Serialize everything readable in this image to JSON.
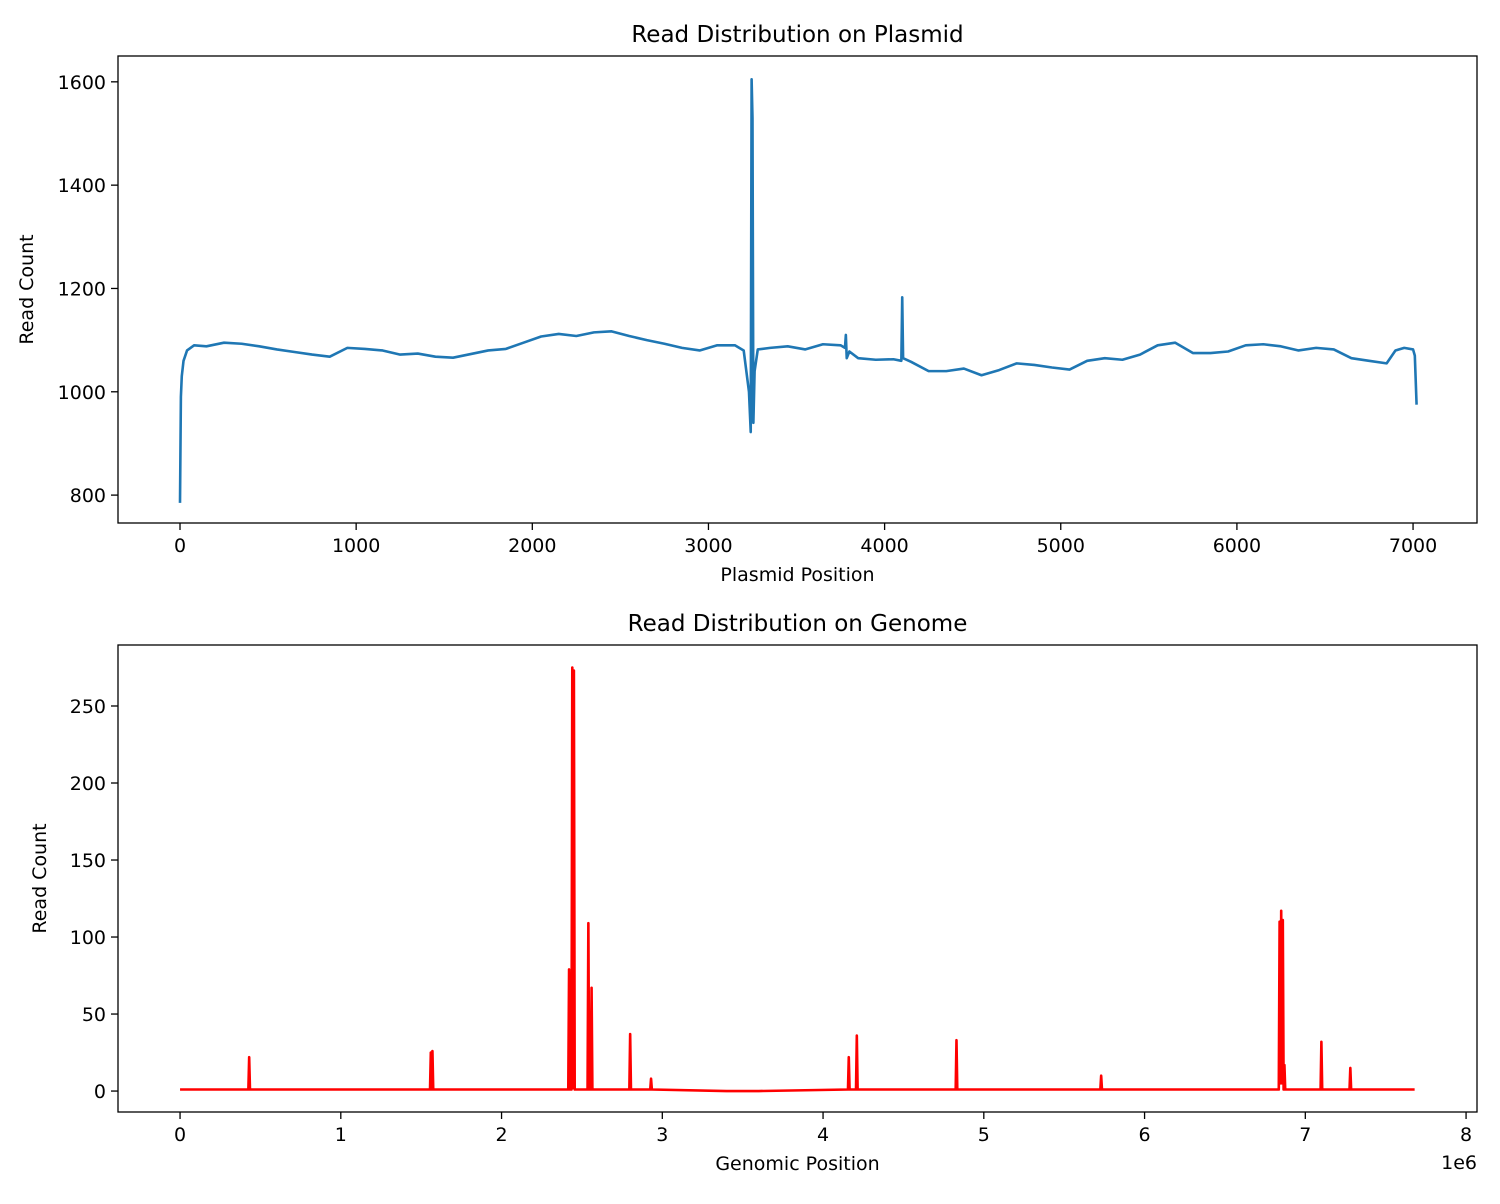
{
  "chart_data": [
    {
      "type": "line",
      "title": "Read Distribution on Plasmid",
      "xlabel": "Plasmid Position",
      "ylabel": "Read Count",
      "color": "#1f77b4",
      "x": [
        0,
        5,
        10,
        20,
        40,
        80,
        150,
        250,
        350,
        450,
        550,
        650,
        750,
        850,
        950,
        1050,
        1150,
        1250,
        1350,
        1450,
        1550,
        1650,
        1750,
        1850,
        1950,
        2050,
        2150,
        2250,
        2350,
        2450,
        2550,
        2650,
        2750,
        2850,
        2950,
        3050,
        3150,
        3200,
        3230,
        3240,
        3245,
        3250,
        3255,
        3262,
        3280,
        3350,
        3450,
        3550,
        3650,
        3750,
        3775,
        3780,
        3785,
        3800,
        3850,
        3950,
        4050,
        4095,
        4100,
        4105,
        4150,
        4250,
        4350,
        4450,
        4550,
        4650,
        4750,
        4850,
        4950,
        5050,
        5150,
        5250,
        5350,
        5450,
        5550,
        5650,
        5750,
        5850,
        5950,
        6050,
        6150,
        6250,
        6350,
        6450,
        6550,
        6650,
        6750,
        6850,
        6900,
        6950,
        7000,
        7010,
        7020
      ],
      "values": [
        785,
        990,
        1030,
        1060,
        1080,
        1090,
        1088,
        1095,
        1093,
        1088,
        1082,
        1077,
        1072,
        1068,
        1085,
        1083,
        1080,
        1072,
        1074,
        1068,
        1066,
        1073,
        1080,
        1083,
        1095,
        1107,
        1112,
        1108,
        1115,
        1117,
        1108,
        1100,
        1093,
        1085,
        1080,
        1090,
        1090,
        1080,
        1000,
        922,
        1605,
        1530,
        940,
        1040,
        1082,
        1085,
        1088,
        1082,
        1092,
        1090,
        1085,
        1110,
        1065,
        1078,
        1065,
        1062,
        1063,
        1060,
        1183,
        1065,
        1058,
        1040,
        1040,
        1045,
        1032,
        1042,
        1055,
        1052,
        1047,
        1043,
        1060,
        1065,
        1062,
        1072,
        1090,
        1095,
        1075,
        1075,
        1078,
        1090,
        1092,
        1088,
        1080,
        1085,
        1082,
        1065,
        1060,
        1055,
        1080,
        1085,
        1082,
        1070,
        975
      ],
      "xlim": [
        -352,
        7363
      ],
      "ylim": [
        746,
        1650
      ],
      "xticks": [
        0,
        1000,
        2000,
        3000,
        4000,
        5000,
        6000,
        7000
      ],
      "yticks": [
        800,
        1000,
        1200,
        1400,
        1600
      ]
    },
    {
      "type": "line",
      "title": "Read Distribution on Genome",
      "xlabel": "Genomic Position",
      "ylabel": "Read Count",
      "x_offset_label": "1e6",
      "color": "#ff0000",
      "x": [
        0,
        0.425,
        0.43,
        0.435,
        1.555,
        1.56,
        1.565,
        1.57,
        1.575,
        2.415,
        2.42,
        2.425,
        2.435,
        2.44,
        2.445,
        2.45,
        2.455,
        2.535,
        2.54,
        2.545,
        2.555,
        2.56,
        2.565,
        2.795,
        2.8,
        2.805,
        2.925,
        2.93,
        2.935,
        3.4,
        3.6,
        4.155,
        4.16,
        4.165,
        4.205,
        4.21,
        4.215,
        4.825,
        4.83,
        4.835,
        5.725,
        5.73,
        5.735,
        6.835,
        6.84,
        6.845,
        6.85,
        6.855,
        6.86,
        6.865,
        6.87,
        6.875,
        7.095,
        7.1,
        7.105,
        7.275,
        7.28,
        7.285,
        7.68
      ],
      "values": [
        1,
        1,
        22,
        1,
        1,
        25,
        1,
        26,
        1,
        1,
        79,
        1,
        1,
        275,
        2,
        273,
        1,
        1,
        109,
        1,
        1,
        67,
        1,
        1,
        37,
        1,
        1,
        8,
        1,
        0,
        0,
        1,
        22,
        1,
        1,
        36,
        1,
        1,
        33,
        1,
        1,
        10,
        1,
        1,
        110,
        5,
        117,
        5,
        111,
        1,
        17,
        1,
        1,
        32,
        1,
        1,
        15,
        1,
        1
      ],
      "xlim": [
        -0.386,
        8.068
      ],
      "ylim": [
        -13.6,
        289.6
      ],
      "xticks": [
        0,
        1,
        2,
        3,
        4,
        5,
        6,
        7,
        8
      ],
      "yticks": [
        0,
        50,
        100,
        150,
        200,
        250
      ]
    }
  ]
}
